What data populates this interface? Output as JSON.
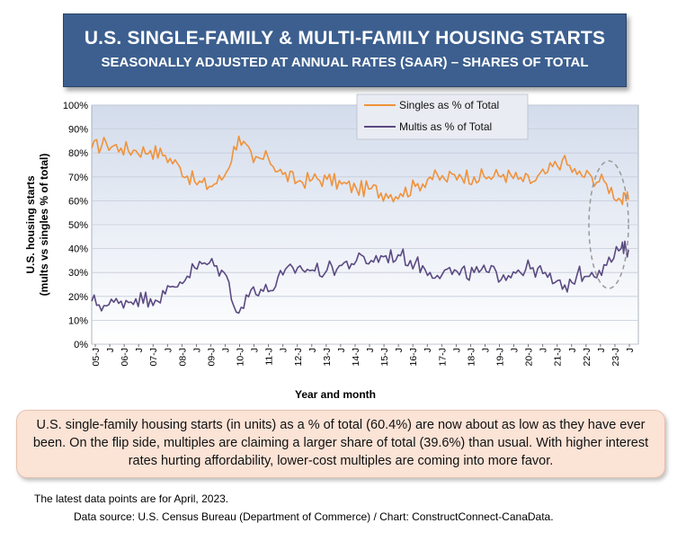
{
  "header": {
    "title": "U.S. SINGLE-FAMILY & MULTI-FAMILY HOUSING STARTS",
    "subtitle": "SEASONALLY ADJUSTED AT ANNUAL RATES (SAAR) – SHARES OF TOTAL"
  },
  "chart_data": {
    "type": "line",
    "xlabel": "Year and month",
    "ylabel_line1": "U.S. housing starts",
    "ylabel_line2": "(mults vs singles % of total)",
    "ylim": [
      0,
      100
    ],
    "y_ticks": [
      "0%",
      "10%",
      "20%",
      "30%",
      "40%",
      "50%",
      "60%",
      "70%",
      "80%",
      "90%",
      "100%"
    ],
    "x_tick_labels": [
      "05-J",
      "J",
      "06-J",
      "J",
      "07-J",
      "J",
      "08-J",
      "J",
      "09-J",
      "J",
      "10-J",
      "J",
      "11-J",
      "J",
      "12-J",
      "J",
      "13-J",
      "J",
      "14-J",
      "J",
      "15-J",
      "J",
      "16-J",
      "J",
      "17-J",
      "J",
      "18-J",
      "J",
      "19-J",
      "J",
      "20-J",
      "J",
      "21-J",
      "J",
      "22-J",
      "J",
      "23-J",
      "J"
    ],
    "legend": [
      "Singles as % of Total",
      "Multis as % of Total"
    ],
    "legend_position": "top-center",
    "series": [
      {
        "name": "Singles as % of Total",
        "color": "#f0923a",
        "x": [
          "2005-01",
          "2005-07",
          "2006-01",
          "2006-07",
          "2007-01",
          "2007-07",
          "2008-01",
          "2008-07",
          "2009-01",
          "2009-07",
          "2010-01",
          "2010-07",
          "2011-01",
          "2011-07",
          "2012-01",
          "2012-07",
          "2013-01",
          "2013-07",
          "2014-01",
          "2014-07",
          "2015-01",
          "2015-07",
          "2016-01",
          "2016-07",
          "2017-01",
          "2017-07",
          "2018-01",
          "2018-07",
          "2019-01",
          "2019-07",
          "2020-01",
          "2020-07",
          "2021-01",
          "2021-07",
          "2022-01",
          "2022-07",
          "2023-01",
          "2023-04"
        ],
        "values": [
          82,
          84,
          82,
          81,
          81,
          79,
          74,
          68,
          66,
          70,
          87,
          76,
          78,
          71,
          68,
          69,
          69,
          67,
          65,
          65,
          63,
          63,
          66,
          70,
          69,
          71,
          70,
          70,
          71,
          69,
          68,
          72,
          77,
          71,
          70,
          67,
          60,
          60.4
        ]
      },
      {
        "name": "Multis as % of Total",
        "color": "#5b4a82",
        "x": [
          "2005-01",
          "2005-07",
          "2006-01",
          "2006-07",
          "2007-01",
          "2007-07",
          "2008-01",
          "2008-07",
          "2009-01",
          "2009-07",
          "2010-01",
          "2010-07",
          "2011-01",
          "2011-07",
          "2012-01",
          "2012-07",
          "2013-01",
          "2013-07",
          "2014-01",
          "2014-07",
          "2015-01",
          "2015-07",
          "2016-01",
          "2016-07",
          "2017-01",
          "2017-07",
          "2018-01",
          "2018-07",
          "2019-01",
          "2019-07",
          "2020-01",
          "2020-07",
          "2021-01",
          "2021-07",
          "2022-01",
          "2022-07",
          "2023-01",
          "2023-04"
        ],
        "values": [
          18,
          16,
          18,
          19,
          19,
          21,
          26,
          32,
          34,
          30,
          13,
          24,
          22,
          29,
          32,
          31,
          31,
          33,
          35,
          35,
          37,
          37,
          34,
          30,
          31,
          29,
          30,
          30,
          29,
          31,
          32,
          28,
          23,
          29,
          30,
          33,
          40,
          39.6
        ]
      }
    ]
  },
  "annotation": "U.S. single-family housing starts (in units) as a % of total (60.4%) are now about as low as they have ever been. On the flip side, multiples are claiming a larger share of total (39.6%) than usual.  With higher interest rates hurting affordability, lower-cost multiples are coming into more favor.",
  "footer": {
    "latest": "The latest data points are for April, 2023.",
    "source": "Data source: U.S. Census Bureau (Department of Commerce) / Chart: ConstructConnect-CanaData."
  }
}
